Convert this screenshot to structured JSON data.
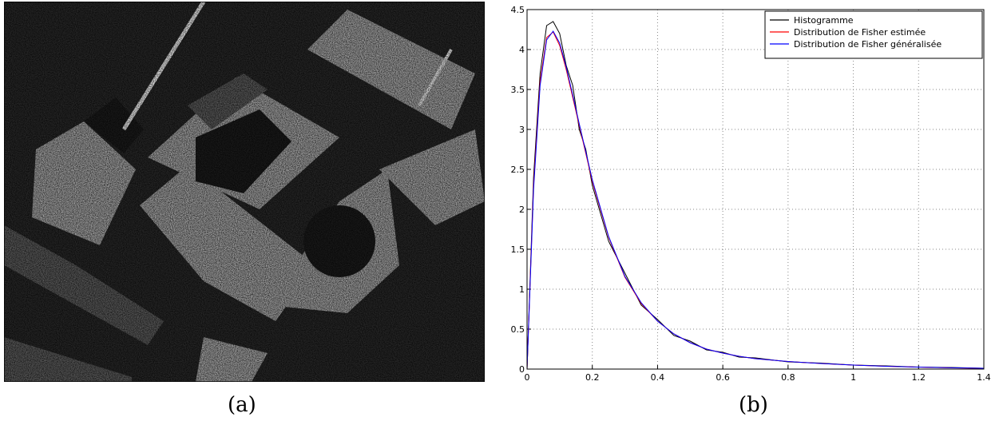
{
  "captions": [
    "(a)",
    "(b)"
  ],
  "chart_data": {
    "type": "line",
    "x": [
      0,
      0.02,
      0.04,
      0.06,
      0.08,
      0.1,
      0.12,
      0.14,
      0.16,
      0.18,
      0.2,
      0.25,
      0.3,
      0.35,
      0.4,
      0.45,
      0.5,
      0.55,
      0.6,
      0.65,
      0.7,
      0.8,
      0.9,
      1.0,
      1.1,
      1.2,
      1.3,
      1.4
    ],
    "series": [
      {
        "name": "Histogramme",
        "color": "#000000",
        "values": [
          0,
          2.4,
          3.7,
          4.3,
          4.35,
          4.2,
          3.8,
          3.55,
          3.0,
          2.75,
          2.3,
          1.6,
          1.2,
          0.8,
          0.62,
          0.42,
          0.35,
          0.24,
          0.21,
          0.15,
          0.14,
          0.09,
          0.075,
          0.05,
          0.04,
          0.025,
          0.02,
          0.01
        ]
      },
      {
        "name": "Distribution de Fisher estimée",
        "color": "#ff0000",
        "values": [
          0,
          2.3,
          3.6,
          4.15,
          4.22,
          4.05,
          3.75,
          3.4,
          3.05,
          2.7,
          2.35,
          1.65,
          1.15,
          0.82,
          0.6,
          0.44,
          0.33,
          0.25,
          0.2,
          0.16,
          0.13,
          0.095,
          0.07,
          0.05,
          0.035,
          0.025,
          0.015,
          0.01
        ]
      },
      {
        "name": "Distribution de Fisher généralisée",
        "color": "#0000ff",
        "values": [
          0,
          2.25,
          3.55,
          4.12,
          4.23,
          4.08,
          3.78,
          3.43,
          3.07,
          2.72,
          2.37,
          1.66,
          1.16,
          0.83,
          0.6,
          0.44,
          0.33,
          0.25,
          0.2,
          0.16,
          0.13,
          0.095,
          0.07,
          0.05,
          0.035,
          0.025,
          0.016,
          0.01
        ]
      }
    ],
    "xlim": [
      0,
      1.4
    ],
    "xticks": [
      0,
      0.2,
      0.4,
      0.6,
      0.8,
      1,
      1.2,
      1.4
    ],
    "ylim": [
      0,
      4.5
    ],
    "yticks": [
      0,
      0.5,
      1,
      1.5,
      2,
      2.5,
      3,
      3.5,
      4,
      4.5
    ],
    "grid": true,
    "legend": "upper right"
  }
}
